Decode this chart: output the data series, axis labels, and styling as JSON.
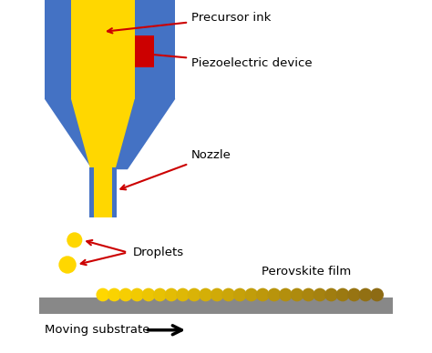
{
  "bg_color": "#ffffff",
  "blue_color": "#4472C4",
  "gold_light": "#FFD700",
  "red_color": "#CC0000",
  "gray_color": "#888888",
  "dark_gold": "#8B6914",
  "label_precursor": "Precursor ink",
  "label_piezo": "Piezoelectric device",
  "label_nozzle": "Nozzle",
  "label_droplets": "Droplets",
  "label_film": "Perovskite film",
  "label_substrate": "Moving substrate",
  "figsize": [
    4.74,
    3.88
  ],
  "dpi": 100
}
